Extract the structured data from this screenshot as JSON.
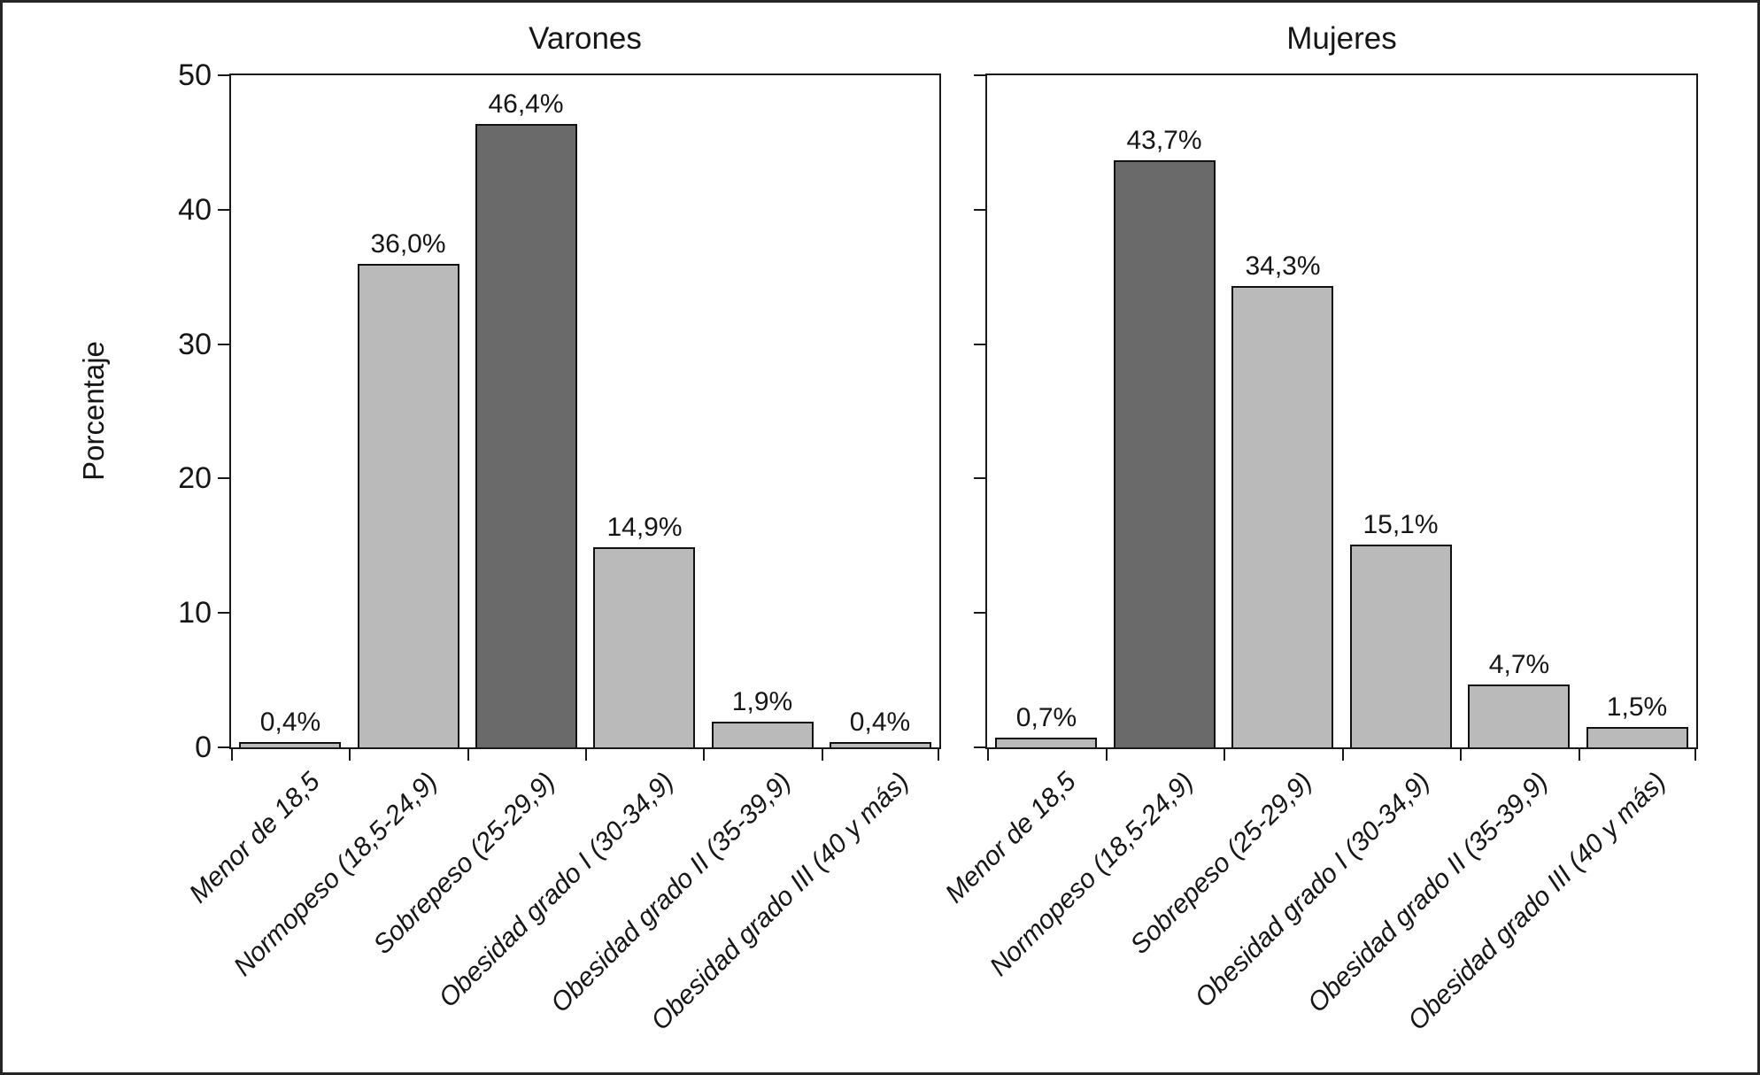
{
  "figure": {
    "ylabel": "Porcentaje",
    "y_ticks": [
      0,
      10,
      20,
      30,
      40,
      50
    ]
  },
  "colors": {
    "bar_light": "#bababa",
    "bar_dark": "#6a6a6a",
    "bar_border": "#111111",
    "axis": "#1a1a1a",
    "text": "#161616",
    "background": "#ffffff"
  },
  "chart_data": [
    {
      "type": "bar",
      "title": "Varones",
      "categories": [
        "Menor de 18,5",
        "Normopeso (18,5-24,9)",
        "Sobrepeso (25-29,9)",
        "Obesidad grado I (30-34,9)",
        "Obesidad grado II (35-39,9)",
        "Obesidad grado III (40 y más)"
      ],
      "values": [
        0.4,
        36.0,
        46.4,
        14.9,
        1.9,
        0.4
      ],
      "value_labels": [
        "0,4%",
        "36,0%",
        "46,4%",
        "14,9%",
        "1,9%",
        "0,4%"
      ],
      "bar_shades": [
        "light",
        "light",
        "dark",
        "light",
        "light",
        "light"
      ],
      "ylabel": "Porcentaje",
      "ylim": [
        0,
        50
      ],
      "show_y_tick_labels": true,
      "grid": false,
      "legend": "none"
    },
    {
      "type": "bar",
      "title": "Mujeres",
      "categories": [
        "Menor de 18,5",
        "Normopeso (18,5-24,9)",
        "Sobrepeso (25-29,9)",
        "Obesidad grado I (30-34,9)",
        "Obesidad grado II (35-39,9)",
        "Obesidad grado III (40 y más)"
      ],
      "values": [
        0.7,
        43.7,
        34.3,
        15.1,
        4.7,
        1.5
      ],
      "value_labels": [
        "0,7%",
        "43,7%",
        "34,3%",
        "15,1%",
        "4,7%",
        "1,5%"
      ],
      "bar_shades": [
        "light",
        "dark",
        "light",
        "light",
        "light",
        "light"
      ],
      "ylabel": "",
      "ylim": [
        0,
        50
      ],
      "show_y_tick_labels": false,
      "grid": false,
      "legend": "none"
    }
  ]
}
